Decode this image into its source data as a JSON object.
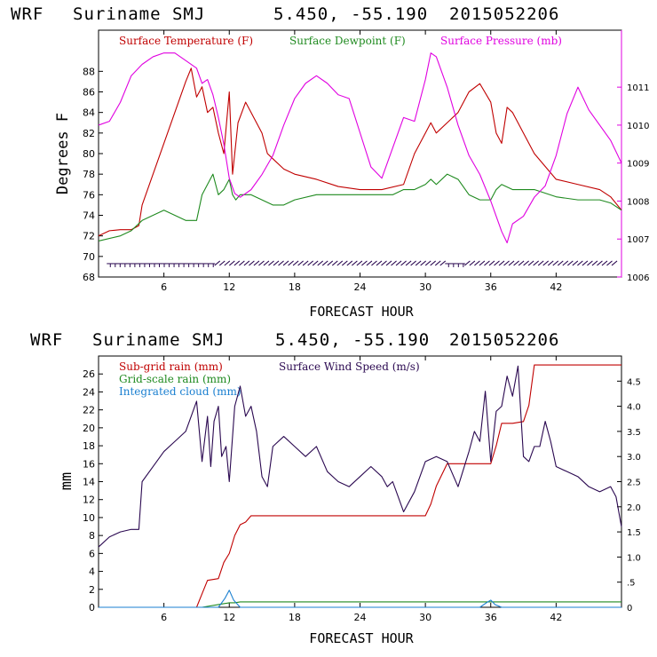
{
  "panels": [
    {
      "header": {
        "model": "WRF",
        "location": "Suriname SMJ",
        "coords": "5.450, -55.190",
        "init": "2015052206"
      },
      "xlabel": "FORECAST HOUR",
      "ylabel": "Degrees F",
      "legend": [
        {
          "label": "Surface Temperature (F)",
          "color": "#c00000"
        },
        {
          "label": "Surface Dewpoint (F)",
          "color": "#1f8a1f"
        },
        {
          "label": "Surface Pressure (mb)",
          "color": "#e000e0"
        }
      ]
    },
    {
      "header": {
        "model": "WRF",
        "location": "Suriname SMJ",
        "coords": "5.450, -55.190",
        "init": "2015052206"
      },
      "xlabel": "FORECAST HOUR",
      "ylabel": "mm",
      "legend": [
        {
          "label": "Sub-grid rain (mm)",
          "color": "#c00000"
        },
        {
          "label": "Surface Wind Speed (m/s)",
          "color": "#2a0850"
        },
        {
          "label": "Grid-scale rain (mm)",
          "color": "#1f8a1f"
        },
        {
          "label": "Integrated cloud (mm)",
          "color": "#1a7fd0"
        }
      ]
    }
  ],
  "chart_data": [
    {
      "type": "line",
      "title": "WRF Suriname SMJ 5.450, -55.190 2015052206",
      "xlabel": "FORECAST HOUR",
      "ylabel": "Degrees F",
      "xlim": [
        0,
        48
      ],
      "ylim": [
        68,
        92
      ],
      "xticks": [
        6,
        12,
        18,
        24,
        30,
        36,
        42
      ],
      "yticks": [
        68,
        70,
        72,
        74,
        76,
        78,
        80,
        82,
        84,
        86,
        88
      ],
      "y2lim": [
        1006,
        1012.5
      ],
      "y2ticks": [
        1006,
        1007,
        1008,
        1009,
        1010,
        1011
      ],
      "series": [
        {
          "name": "Surface Temperature (F)",
          "axis": "left",
          "color": "#c00000",
          "x": [
            0,
            1,
            2,
            3,
            3.7,
            4,
            5,
            6,
            7,
            8,
            8.5,
            9,
            9.5,
            10,
            10.5,
            11,
            11.5,
            12,
            12.3,
            12.8,
            13.5,
            14,
            15,
            15.5,
            16,
            17,
            18,
            20,
            22,
            24,
            26,
            28,
            29,
            30,
            30.5,
            31,
            32,
            33,
            34,
            35,
            36,
            36.5,
            37,
            37.5,
            38,
            39,
            40,
            42,
            44,
            46,
            47,
            48
          ],
          "y": [
            72,
            72.5,
            72.6,
            72.6,
            73,
            75,
            78,
            81,
            84,
            87,
            88.3,
            85.5,
            86.5,
            84,
            84.5,
            82,
            80,
            86,
            78,
            83,
            85,
            84,
            82,
            80,
            79.5,
            78.5,
            78,
            77.5,
            76.8,
            76.5,
            76.5,
            77,
            80,
            82,
            83,
            82,
            83,
            84,
            86,
            86.8,
            85,
            82,
            81,
            84.5,
            84,
            82,
            80,
            77.5,
            77,
            76.5,
            75.8,
            74.5
          ]
        },
        {
          "name": "Surface Dewpoint (F)",
          "axis": "left",
          "color": "#1f8a1f",
          "x": [
            0,
            2,
            3,
            4,
            5,
            6,
            7,
            8,
            9,
            9.5,
            10,
            10.5,
            11,
            11.5,
            12,
            12.3,
            12.6,
            13,
            14,
            15,
            16,
            17,
            18,
            20,
            22,
            24,
            26,
            27,
            28,
            29,
            30,
            30.5,
            31,
            32,
            33,
            34,
            35,
            36,
            36.5,
            37,
            38,
            40,
            42,
            44,
            46,
            47,
            48
          ],
          "y": [
            71.5,
            72,
            72.5,
            73.5,
            74,
            74.5,
            74,
            73.5,
            73.5,
            76,
            77,
            78,
            76,
            76.5,
            77.5,
            76,
            75.5,
            76,
            76,
            75.5,
            75,
            75,
            75.5,
            76,
            76,
            76,
            76,
            76,
            76.5,
            76.5,
            77,
            77.5,
            77,
            78,
            77.5,
            76,
            75.5,
            75.5,
            76.5,
            77,
            76.5,
            76.5,
            75.8,
            75.5,
            75.5,
            75.2,
            74.5
          ]
        },
        {
          "name": "Surface Pressure (mb)",
          "axis": "right",
          "color": "#e000e0",
          "x": [
            0,
            1,
            2,
            3,
            4,
            5,
            6,
            7,
            8,
            9,
            9.5,
            10,
            10.5,
            11,
            11.5,
            12,
            12.5,
            13,
            14,
            15,
            16,
            17,
            18,
            19,
            20,
            21,
            22,
            23,
            24,
            25,
            26,
            27,
            28,
            29,
            30,
            30.5,
            31,
            32,
            33,
            34,
            35,
            36,
            37,
            37.5,
            38,
            39,
            40,
            41,
            42,
            43,
            44,
            45,
            46,
            47,
            48
          ],
          "y": [
            1010,
            1010.1,
            1010.6,
            1011.3,
            1011.6,
            1011.8,
            1011.9,
            1011.9,
            1011.7,
            1011.5,
            1011.1,
            1011.2,
            1010.8,
            1010.2,
            1009.5,
            1008.6,
            1008.2,
            1008.1,
            1008.3,
            1008.7,
            1009.2,
            1010,
            1010.7,
            1011.1,
            1011.3,
            1011.1,
            1010.8,
            1010.7,
            1009.8,
            1008.9,
            1008.6,
            1009.4,
            1010.2,
            1010.1,
            1011.2,
            1011.9,
            1011.8,
            1011,
            1010,
            1009.2,
            1008.7,
            1008,
            1007.2,
            1006.9,
            1007.4,
            1007.6,
            1008.1,
            1008.4,
            1009.2,
            1010.3,
            1011,
            1010.4,
            1010,
            1009.6,
            1009
          ]
        }
      ],
      "wind_barbs": "row of wind barbs near the 69-70 F level along the full forecast period"
    },
    {
      "type": "line",
      "title": "WRF Suriname SMJ 5.450, -55.190 2015052206",
      "xlabel": "FORECAST HOUR",
      "ylabel": "mm",
      "xlim": [
        0,
        48
      ],
      "ylim": [
        0,
        28
      ],
      "xticks": [
        6,
        12,
        18,
        24,
        30,
        36,
        42
      ],
      "yticks": [
        0,
        2,
        4,
        6,
        8,
        10,
        12,
        14,
        16,
        18,
        20,
        22,
        24,
        26
      ],
      "y2lim": [
        0,
        5
      ],
      "y2ticks": [
        0,
        0.5,
        1.0,
        1.5,
        2.0,
        2.5,
        3.0,
        3.5,
        4.0,
        4.5
      ],
      "y2ticklabels": [
        "0",
        ".5",
        "1.0",
        "1.5",
        "2.0",
        "2.5",
        "3.0",
        "3.5",
        "4.0",
        "4.5"
      ],
      "series": [
        {
          "name": "Sub-grid rain (mm)",
          "axis": "left",
          "color": "#c00000",
          "x": [
            0,
            9,
            9.5,
            10,
            11,
            11.5,
            12,
            12.5,
            13,
            13.5,
            14,
            16,
            20,
            24,
            28,
            30,
            30.5,
            31,
            32,
            34,
            35,
            36,
            36.5,
            37,
            38,
            39,
            39.5,
            40,
            44,
            48
          ],
          "y": [
            0,
            0,
            1.5,
            3,
            3.2,
            5,
            6,
            8,
            9.2,
            9.5,
            10.2,
            10.2,
            10.2,
            10.2,
            10.2,
            10.2,
            11.5,
            13.5,
            16,
            16,
            16,
            16,
            18,
            20.5,
            20.5,
            20.7,
            22.5,
            27,
            27,
            27
          ]
        },
        {
          "name": "Grid-scale rain (mm)",
          "axis": "left",
          "color": "#1f8a1f",
          "x": [
            0,
            9.5,
            11,
            12,
            12.5,
            13,
            20,
            30,
            36,
            42,
            48
          ],
          "y": [
            0,
            0,
            0.3,
            0.5,
            0.5,
            0.6,
            0.6,
            0.6,
            0.6,
            0.6,
            0.6
          ]
        },
        {
          "name": "Integrated cloud (mm)",
          "axis": "left",
          "color": "#1a7fd0",
          "x": [
            0,
            11,
            11.6,
            12,
            12.4,
            13,
            35,
            35.6,
            36,
            36.4,
            37,
            48
          ],
          "y": [
            0,
            0,
            1,
            1.9,
            0.8,
            0,
            0,
            0.5,
            0.8,
            0.3,
            0,
            0
          ]
        },
        {
          "name": "Surface Wind Speed (m/s)",
          "axis": "right",
          "color": "#2a0850",
          "x": [
            0,
            1,
            2,
            3,
            3.7,
            4,
            5,
            6,
            7,
            8,
            9,
            9.5,
            10,
            10.3,
            10.6,
            11,
            11.3,
            11.7,
            12,
            12.5,
            13,
            13.5,
            14,
            14.5,
            15,
            15.5,
            16,
            17,
            18,
            19,
            20,
            21,
            22,
            23,
            24,
            25,
            26,
            26.5,
            27,
            27.5,
            28,
            29,
            30,
            31,
            32,
            33,
            34,
            34.5,
            35,
            35.5,
            36,
            36.5,
            37,
            37.5,
            38,
            38.5,
            39,
            39.5,
            40,
            40.5,
            41,
            41.5,
            42,
            43,
            44,
            45,
            46,
            47,
            47.5,
            48
          ],
          "y": [
            1.2,
            1.4,
            1.5,
            1.55,
            1.55,
            2.5,
            2.8,
            3.1,
            3.3,
            3.5,
            4.1,
            2.9,
            3.8,
            2.8,
            3.7,
            4.0,
            3.0,
            3.2,
            2.5,
            4.0,
            4.4,
            3.8,
            4.0,
            3.5,
            2.6,
            2.4,
            3.2,
            3.4,
            3.2,
            3.0,
            3.2,
            2.7,
            2.5,
            2.4,
            2.6,
            2.8,
            2.6,
            2.4,
            2.5,
            2.2,
            1.9,
            2.3,
            2.9,
            3.0,
            2.9,
            2.4,
            3.1,
            3.5,
            3.3,
            4.3,
            2.9,
            3.9,
            4.0,
            4.6,
            4.2,
            4.8,
            3.0,
            2.9,
            3.2,
            3.2,
            3.7,
            3.3,
            2.8,
            2.7,
            2.6,
            2.4,
            2.3,
            2.4,
            2.2,
            1.6
          ]
        }
      ]
    }
  ]
}
